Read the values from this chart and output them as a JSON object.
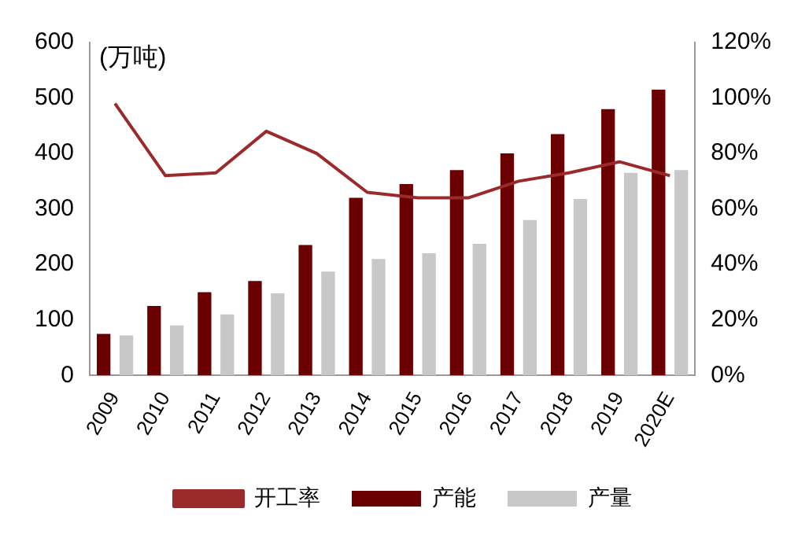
{
  "chart_data": {
    "type": "bar",
    "ylabel": "(万吨)",
    "categories": [
      "2009",
      "2010",
      "2011",
      "2012",
      "2013",
      "2014",
      "2015",
      "2016",
      "2017",
      "2018",
      "2019",
      "2020E"
    ],
    "series": [
      {
        "name": "产能",
        "color": "#6b0000",
        "values": [
          75,
          125,
          150,
          170,
          235,
          320,
          345,
          370,
          400,
          435,
          480,
          515
        ]
      },
      {
        "name": "产量",
        "color": "#c8c8c8",
        "values": [
          72,
          90,
          110,
          148,
          187,
          210,
          220,
          237,
          280,
          318,
          365,
          370
        ]
      },
      {
        "name": "开工率",
        "type": "line",
        "axis": "y2",
        "color": "#9b2a2a",
        "values": [
          98,
          72,
          73,
          88,
          80,
          66,
          64,
          64,
          70,
          73,
          77,
          72
        ]
      }
    ],
    "ylim": [
      0,
      600
    ],
    "yticks": [
      0,
      100,
      200,
      300,
      400,
      500,
      600
    ],
    "y2lim": [
      0,
      120
    ],
    "y2ticks": [
      {
        "value": 0,
        "label": "0%"
      },
      {
        "value": 20,
        "label": "20%"
      },
      {
        "value": 40,
        "label": "40%"
      },
      {
        "value": 60,
        "label": "60%"
      },
      {
        "value": 80,
        "label": "80%"
      },
      {
        "value": 100,
        "label": "100%"
      },
      {
        "value": 120,
        "label": "120%"
      }
    ],
    "grid": false,
    "legend": "bottom",
    "marker": "none"
  }
}
